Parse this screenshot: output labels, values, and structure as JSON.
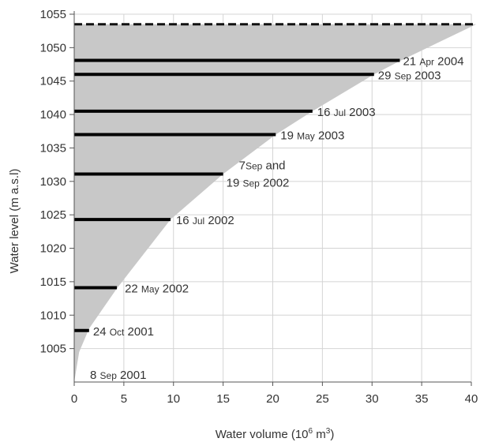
{
  "chart_data": {
    "type": "area",
    "xlabel": "Water volume (10⁶ m³)",
    "xlabel_main": "Water volume (10",
    "xlabel_exp1": "6",
    "xlabel_mid": " m",
    "xlabel_exp2": "3",
    "xlabel_end": ")",
    "ylabel": "Water level (m a.s.l)",
    "xlim": [
      0,
      40
    ],
    "ylim": [
      1000,
      1055
    ],
    "x_ticks": [
      0,
      5,
      10,
      15,
      20,
      25,
      30,
      35,
      40
    ],
    "y_ticks": [
      1005,
      1010,
      1015,
      1020,
      1025,
      1030,
      1035,
      1040,
      1045,
      1050,
      1055
    ],
    "grid": true,
    "full_level_line": 1053.5,
    "curve": [
      {
        "x": 0,
        "y": 1000
      },
      {
        "x": 0.5,
        "y": 1004.5
      },
      {
        "x": 1.5,
        "y": 1008
      },
      {
        "x": 4.3,
        "y": 1014
      },
      {
        "x": 9.7,
        "y": 1024.3
      },
      {
        "x": 15.0,
        "y": 1031.1
      },
      {
        "x": 20.3,
        "y": 1037
      },
      {
        "x": 24.0,
        "y": 1040.5
      },
      {
        "x": 30.2,
        "y": 1046
      },
      {
        "x": 32.8,
        "y": 1048
      },
      {
        "x": 37.0,
        "y": 1051
      },
      {
        "x": 40.5,
        "y": 1053.5
      }
    ],
    "series": [
      {
        "date": "8 Sep 2001",
        "level": 1001.2,
        "volume": 0
      },
      {
        "date": "24 Oct 2001",
        "level": 1007.7,
        "volume": 1.5
      },
      {
        "date": "22 May 2002",
        "level": 1014.1,
        "volume": 4.3
      },
      {
        "date": "16 Jul 2002",
        "level": 1024.3,
        "volume": 9.7
      },
      {
        "date": "7 Sep and 19 Sep 2002",
        "level": 1031.1,
        "volume": 15.0
      },
      {
        "date": "19 May 2003",
        "level": 1037.0,
        "volume": 20.3
      },
      {
        "date": "16 Jul 2003",
        "level": 1040.5,
        "volume": 24.0
      },
      {
        "date": "29 Sep 2003",
        "level": 1046.0,
        "volume": 30.2
      },
      {
        "date": "21 Apr 2004",
        "level": 1048.1,
        "volume": 32.8
      }
    ]
  },
  "annotations": [
    {
      "parts": [
        "8 ",
        "Sep",
        " 2001"
      ]
    },
    {
      "parts": [
        "24 ",
        "Oct",
        " 2001"
      ]
    },
    {
      "parts": [
        "22 ",
        "May",
        " 2002"
      ]
    },
    {
      "parts": [
        "16 ",
        "Jul",
        " 2002"
      ]
    },
    {
      "parts": [
        "7",
        "Sep",
        " and"
      ]
    },
    {
      "parts": [
        "19 ",
        "Sep",
        " 2002"
      ]
    },
    {
      "parts": [
        "19 ",
        "May",
        " 2003"
      ]
    },
    {
      "parts": [
        "16 ",
        "Jul",
        " 2003"
      ]
    },
    {
      "parts": [
        "29 ",
        "Sep",
        " 2003"
      ]
    },
    {
      "parts": [
        "21 ",
        "Apr",
        " 2004"
      ]
    }
  ]
}
